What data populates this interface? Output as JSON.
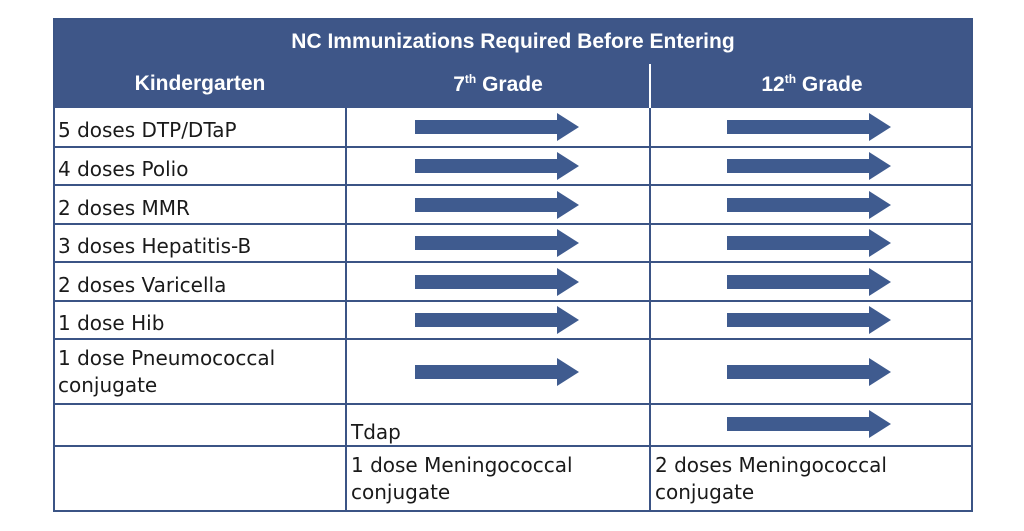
{
  "title": "NC Immunizations Required Before Entering",
  "columns": [
    {
      "label": "Kindergarten",
      "sup": ""
    },
    {
      "label": "Grade",
      "prefix": "7",
      "sup": "th"
    },
    {
      "label": "Grade",
      "prefix": "12",
      "sup": "th"
    }
  ],
  "rows": [
    {
      "kindergarten": "5 doses DTP/DTaP",
      "grade7": "continues",
      "grade12": "continues"
    },
    {
      "kindergarten": "4 doses Polio",
      "grade7": "continues",
      "grade12": "continues"
    },
    {
      "kindergarten": "2 doses MMR",
      "grade7": "continues",
      "grade12": "continues"
    },
    {
      "kindergarten": "3 doses Hepatitis-B",
      "grade7": "continues",
      "grade12": "continues"
    },
    {
      "kindergarten": "2 doses Varicella",
      "grade7": "continues",
      "grade12": "continues"
    },
    {
      "kindergarten": "1 dose Hib",
      "grade7": "continues",
      "grade12": "continues"
    },
    {
      "kindergarten": "1 dose Pneumococcal conjugate",
      "grade7": "continues",
      "grade12": "continues"
    },
    {
      "kindergarten": "",
      "grade7": "Tdap",
      "grade12": "continues"
    },
    {
      "kindergarten": "",
      "grade7": "1 dose Meningococcal conjugate",
      "grade12": "2 doses Meningococcal conjugate"
    }
  ],
  "colors": {
    "header_bg": "#3e5688",
    "arrow": "#3f5b8f",
    "grid": "#3b5485"
  }
}
